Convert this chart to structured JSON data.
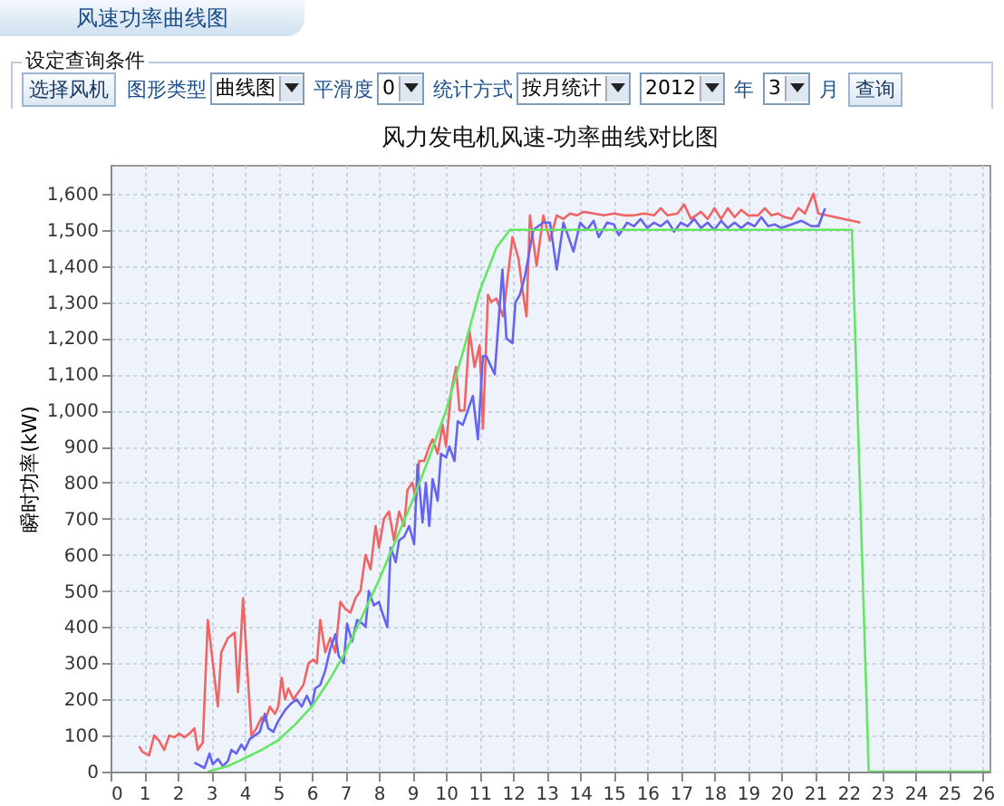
{
  "chart_data": {
    "type": "line",
    "title": "风力发电机风速-功率曲线对比图",
    "ylabel": "瞬时功率(kW)",
    "annotations": [
      "风速功率曲线图",
      "设定查询条件",
      "选择风机",
      "图形类型",
      "曲线图",
      "平滑度",
      "0",
      "统计方式",
      "按月统计",
      "2012",
      "年",
      "3",
      "月",
      "查询"
    ],
    "xlim": [
      0,
      26.2
    ],
    "xticks": [
      0,
      1,
      2,
      3,
      4,
      5,
      6,
      7,
      8,
      9,
      10,
      11,
      12,
      13,
      14,
      15,
      16,
      17,
      18,
      19,
      20,
      21,
      22,
      23,
      24,
      25,
      26
    ],
    "ylim": [
      0,
      1680
    ],
    "yticks": [
      0,
      100,
      200,
      300,
      400,
      500,
      600,
      700,
      800,
      900,
      {
        "value": 1000,
        "label": "1,000"
      },
      {
        "value": 1100,
        "label": "1,100"
      },
      {
        "value": 1200,
        "label": "1,200"
      },
      {
        "value": 1300,
        "label": "1,300"
      },
      {
        "value": 1400,
        "label": "1,400"
      },
      {
        "value": 1500,
        "label": "1,500"
      },
      {
        "value": 1600,
        "label": "1,600"
      }
    ],
    "grid": true,
    "marker": "none",
    "line_style": "solid",
    "series": [
      {
        "color": "#f06464",
        "x": [
          0.85,
          0.95,
          1.05,
          1.15,
          1.3,
          1.45,
          1.6,
          1.75,
          1.9,
          2.05,
          2.2,
          2.35,
          2.5,
          2.6,
          2.75,
          2.9,
          3.05,
          3.2,
          3.3,
          3.5,
          3.7,
          3.8,
          3.95,
          4.1,
          4.2,
          4.35,
          4.5,
          4.6,
          4.75,
          4.9,
          5.0,
          5.1,
          5.2,
          5.3,
          5.45,
          5.6,
          5.75,
          5.9,
          6.05,
          6.15,
          6.25,
          6.4,
          6.55,
          6.7,
          6.85,
          7.0,
          7.15,
          7.3,
          7.45,
          7.6,
          7.75,
          7.9,
          8.0,
          8.15,
          8.3,
          8.45,
          8.6,
          8.75,
          8.85,
          9.0,
          9.1,
          9.2,
          9.35,
          9.5,
          9.6,
          9.75,
          9.9,
          10.0,
          10.15,
          10.3,
          10.4,
          10.55,
          10.7,
          10.85,
          11.0,
          11.1,
          11.25,
          11.35,
          11.5,
          11.7,
          11.98,
          12.16,
          12.3,
          12.4,
          12.5,
          12.7,
          12.9,
          13.1,
          13.3,
          13.5,
          13.7,
          13.9,
          14.1,
          14.4,
          14.7,
          15.0,
          15.3,
          15.6,
          15.9,
          16.2,
          16.4,
          16.6,
          16.9,
          17.1,
          17.3,
          17.6,
          17.8,
          18.0,
          18.2,
          18.4,
          18.6,
          18.8,
          19.0,
          19.3,
          19.5,
          19.7,
          19.9,
          20.1,
          20.3,
          20.5,
          20.7,
          20.95,
          21.1,
          22.35
        ],
        "values": [
          70,
          55,
          50,
          45,
          100,
          85,
          60,
          100,
          95,
          105,
          95,
          105,
          120,
          60,
          80,
          420,
          300,
          180,
          330,
          370,
          385,
          220,
          480,
          250,
          100,
          120,
          150,
          140,
          180,
          160,
          180,
          260,
          200,
          230,
          200,
          220,
          240,
          300,
          310,
          300,
          420,
          330,
          370,
          330,
          470,
          450,
          440,
          480,
          500,
          600,
          560,
          680,
          620,
          700,
          720,
          640,
          720,
          680,
          780,
          800,
          750,
          860,
          860,
          900,
          920,
          880,
          960,
          900,
          1050,
          1120,
          1000,
          1000,
          1220,
          1120,
          1180,
          950,
          1320,
          1300,
          1310,
          1260,
          1480,
          1420,
          1320,
          1260,
          1540,
          1400,
          1540,
          1470,
          1540,
          1530,
          1545,
          1540,
          1550,
          1545,
          1540,
          1545,
          1540,
          1540,
          1545,
          1540,
          1560,
          1540,
          1545,
          1570,
          1530,
          1550,
          1530,
          1560,
          1530,
          1560,
          1535,
          1555,
          1540,
          1540,
          1560,
          1540,
          1545,
          1535,
          1530,
          1560,
          1545,
          1600,
          1545,
          1520
        ]
      },
      {
        "color": "#6464f0",
        "x": [
          2.5,
          2.7,
          2.8,
          2.95,
          3.05,
          3.2,
          3.35,
          3.5,
          3.6,
          3.75,
          3.9,
          4.0,
          4.15,
          4.3,
          4.45,
          4.6,
          4.7,
          4.85,
          5.0,
          5.2,
          5.4,
          5.55,
          5.7,
          5.85,
          6.0,
          6.1,
          6.25,
          6.4,
          6.55,
          6.7,
          6.8,
          6.95,
          7.05,
          7.2,
          7.35,
          7.5,
          7.6,
          7.7,
          7.85,
          8.0,
          8.1,
          8.25,
          8.35,
          8.5,
          8.6,
          8.75,
          8.9,
          9.05,
          9.15,
          9.3,
          9.4,
          9.5,
          9.6,
          9.75,
          9.85,
          10.0,
          10.1,
          10.25,
          10.35,
          10.5,
          10.65,
          10.8,
          10.95,
          11.1,
          11.2,
          11.45,
          11.68,
          11.8,
          11.98,
          12.07,
          12.2,
          12.35,
          12.6,
          12.9,
          13.1,
          13.3,
          13.5,
          13.8,
          14.0,
          14.2,
          14.4,
          14.55,
          14.8,
          15.0,
          15.15,
          15.4,
          15.6,
          15.8,
          16.0,
          16.2,
          16.4,
          16.6,
          16.8,
          17.0,
          17.2,
          17.4,
          17.6,
          17.8,
          18.0,
          18.2,
          18.4,
          18.6,
          18.8,
          19.0,
          19.2,
          19.4,
          19.6,
          19.8,
          20.0,
          20.3,
          20.6,
          20.9,
          21.1,
          21.3
        ],
        "values": [
          25,
          15,
          10,
          50,
          20,
          35,
          15,
          30,
          60,
          50,
          75,
          60,
          90,
          100,
          110,
          160,
          120,
          110,
          140,
          170,
          190,
          200,
          180,
          210,
          180,
          230,
          240,
          280,
          340,
          380,
          320,
          300,
          410,
          360,
          420,
          410,
          400,
          500,
          460,
          470,
          440,
          400,
          620,
          580,
          640,
          650,
          680,
          630,
          850,
          690,
          800,
          680,
          810,
          750,
          880,
          870,
          900,
          860,
          970,
          960,
          1000,
          1040,
          920,
          1150,
          1150,
          1100,
          1390,
          1200,
          1186,
          1300,
          1320,
          1370,
          1500,
          1520,
          1520,
          1390,
          1520,
          1440,
          1520,
          1500,
          1525,
          1480,
          1520,
          1515,
          1485,
          1520,
          1510,
          1530,
          1505,
          1520,
          1510,
          1525,
          1495,
          1520,
          1510,
          1530,
          1505,
          1520,
          1500,
          1525,
          1505,
          1520,
          1505,
          1520,
          1510,
          1535,
          1510,
          1515,
          1505,
          1515,
          1525,
          1510,
          1510,
          1560
        ]
      },
      {
        "color": "#64e664",
        "x": [
          2.9,
          3.5,
          4,
          4.5,
          5,
          5.5,
          6,
          6.5,
          7,
          7.5,
          8,
          8.5,
          9,
          9.5,
          10,
          10.5,
          11,
          11.5,
          11.9,
          22.1,
          22.6,
          26.2
        ],
        "values": [
          0,
          15,
          37,
          60,
          87,
          130,
          180,
          250,
          330,
          430,
          530,
          640,
          750,
          870,
          1000,
          1160,
          1330,
          1450,
          1500,
          1500,
          0,
          0
        ]
      }
    ]
  }
}
